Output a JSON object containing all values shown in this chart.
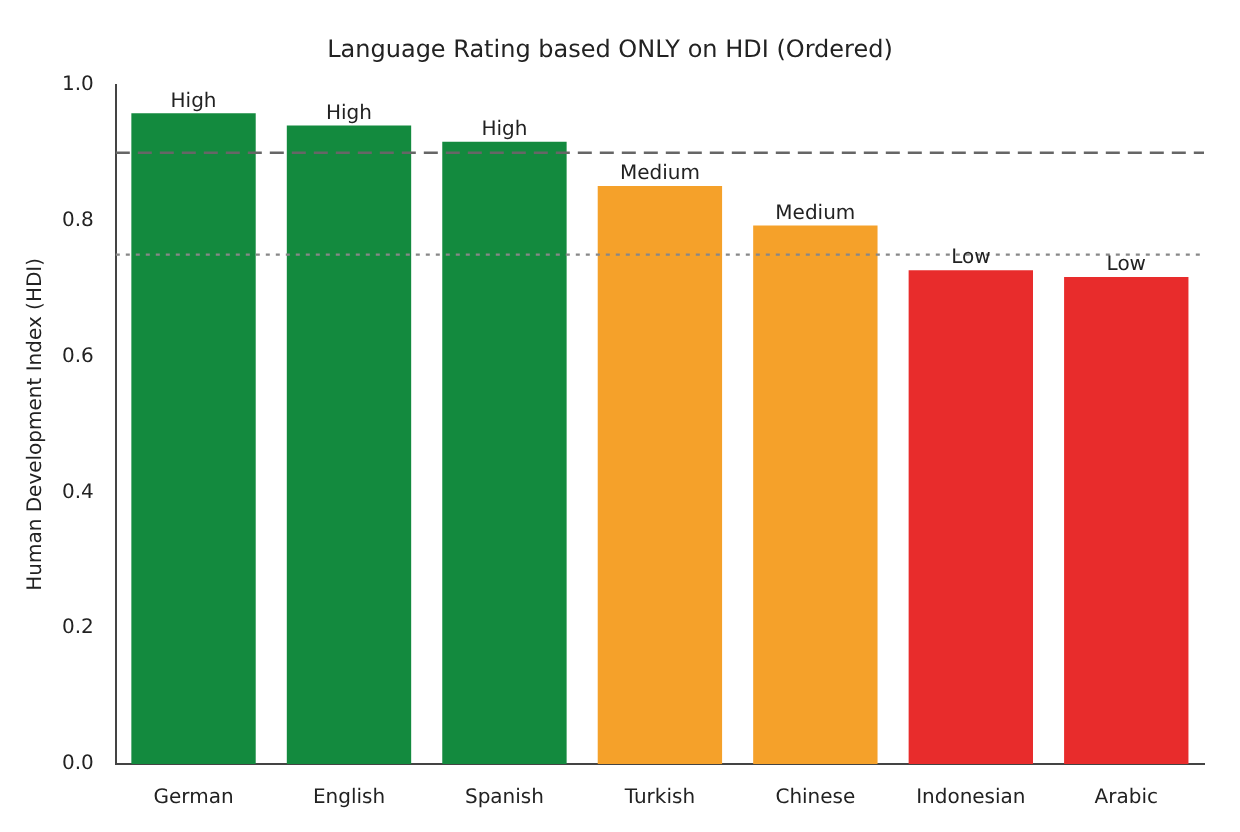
{
  "chart_data": {
    "type": "bar",
    "title": "Language Rating based ONLY on HDI (Ordered)",
    "ylabel": "Human Development Index (HDI)",
    "categories": [
      "German",
      "English",
      "Spanish",
      "Turkish",
      "Chinese",
      "Indonesian",
      "Arabic"
    ],
    "values": [
      0.958,
      0.94,
      0.916,
      0.851,
      0.793,
      0.727,
      0.717
    ],
    "colors": [
      "#138a3e",
      "#138a3e",
      "#138a3e",
      "#f5a12a",
      "#f5a12a",
      "#e82c2c",
      "#e82c2c"
    ],
    "value_labels": [
      "High",
      "High",
      "High",
      "Medium",
      "Medium",
      "Low",
      "Low"
    ],
    "ylim": [
      0,
      1.0
    ],
    "yticks": [
      {
        "value": 0,
        "label": "0.0"
      },
      0.2,
      0.4,
      0.6,
      0.8,
      {
        "value": 1,
        "label": "1.0"
      }
    ],
    "ref_lines": [
      {
        "axis": "y",
        "value": 0.9,
        "color": "#666666",
        "line_style": "dashed"
      },
      {
        "axis": "y",
        "value": 0.75,
        "color": "#888888",
        "line_style": "dotted"
      }
    ],
    "grid": false,
    "legend": false
  }
}
